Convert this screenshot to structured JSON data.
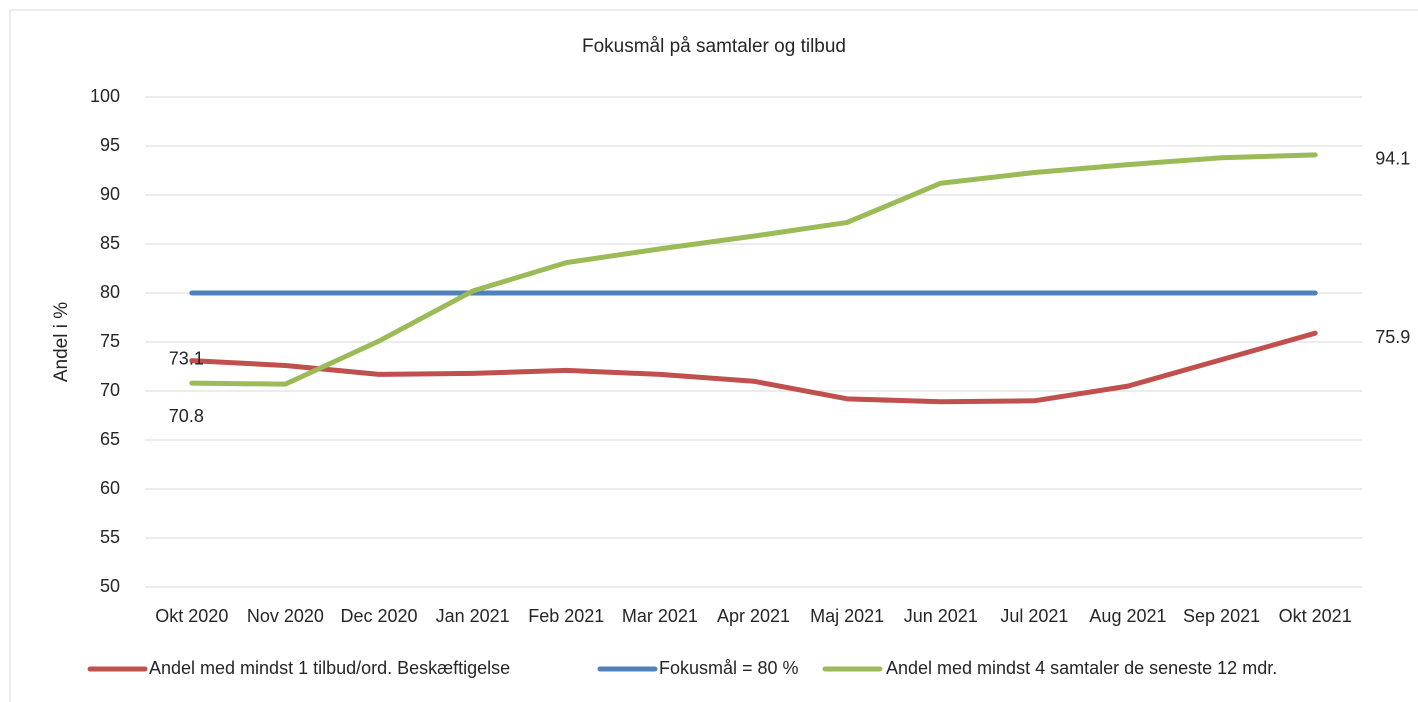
{
  "chart_data": {
    "type": "line",
    "title": "Fokusmål på samtaler og tilbud",
    "y_label": "Andel i %",
    "categories": [
      "Okt 2020",
      "Nov 2020",
      "Dec 2020",
      "Jan 2021",
      "Feb 2021",
      "Mar 2021",
      "Apr 2021",
      "Maj 2021",
      "Jun 2021",
      "Jul 2021",
      "Aug 2021",
      "Sep 2021",
      "Okt 2021"
    ],
    "series": [
      {
        "name": "Andel med mindst 1 tilbud/ord. Beskæftigelse",
        "color": "#c0504d",
        "values": [
          73.1,
          72.6,
          71.7,
          71.8,
          72.1,
          71.7,
          71.0,
          69.2,
          68.9,
          69.0,
          70.5,
          73.2,
          75.9
        ],
        "value_labels": [
          "73.1",
          null,
          null,
          null,
          null,
          null,
          null,
          null,
          null,
          null,
          null,
          null,
          "75.9"
        ]
      },
      {
        "name": "Fokusmål = 80 %",
        "color": "#4f81bd",
        "values": [
          80,
          80,
          80,
          80,
          80,
          80,
          80,
          80,
          80,
          80,
          80,
          80,
          80
        ]
      },
      {
        "name": "Andel med mindst 4 samtaler de seneste 12 mdr.",
        "color": "#9bbb59",
        "values": [
          70.8,
          70.7,
          75.1,
          80.2,
          83.1,
          84.5,
          85.8,
          87.2,
          91.2,
          92.3,
          93.1,
          93.8,
          94.1
        ],
        "value_labels": [
          "70.8",
          null,
          null,
          null,
          null,
          null,
          null,
          null,
          null,
          null,
          null,
          null,
          "94.1"
        ]
      }
    ],
    "ylim": [
      50,
      100
    ],
    "yticks": [
      50,
      55,
      60,
      65,
      70,
      75,
      80,
      85,
      90,
      95,
      100
    ],
    "grid": true,
    "legend": "bottom"
  }
}
